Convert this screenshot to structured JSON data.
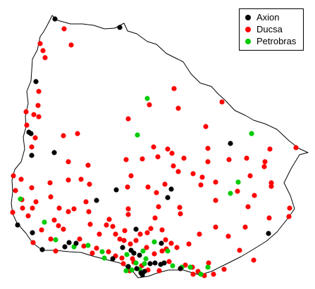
{
  "legend": {
    "items": [
      {
        "label": "Axion",
        "color": "#000000"
      },
      {
        "label": "Ducsa",
        "color": "#ff0000"
      },
      {
        "label": "Petrobras",
        "color": "#00cc00"
      }
    ]
  },
  "chart_data": {
    "type": "scatter",
    "title": "",
    "grid": false,
    "legend_position": "top-right",
    "outline_color": "#000000",
    "series": [
      {
        "name": "Axion",
        "color": "#000000",
        "points": [
          [
            78,
            27
          ],
          [
            170,
            39
          ],
          [
            51,
            116
          ],
          [
            41,
            188
          ],
          [
            44,
            190
          ],
          [
            77,
            217
          ],
          [
            45,
            221
          ],
          [
            327,
            204
          ],
          [
            243,
            269
          ],
          [
            165,
            270
          ],
          [
            137,
            285
          ],
          [
            25,
            320
          ],
          [
            46,
            331
          ],
          [
            92,
            351
          ],
          [
            98,
            345
          ],
          [
            108,
            346
          ],
          [
            60,
            355
          ],
          [
            174,
            352
          ],
          [
            186,
            356
          ],
          [
            190,
            360
          ],
          [
            160,
            368
          ],
          [
            198,
            363
          ],
          [
            182,
            379
          ],
          [
            194,
            382
          ],
          [
            200,
            388
          ],
          [
            205,
            386
          ],
          [
            213,
            375
          ],
          [
            220,
            374
          ],
          [
            228,
            376
          ],
          [
            233,
            374
          ],
          [
            229,
            346
          ],
          [
            256,
            382
          ],
          [
            202,
            391
          ],
          [
            381,
            332
          ],
          [
            193,
            326
          ],
          [
            238,
            281
          ]
        ]
      },
      {
        "name": "Ducsa",
        "color": "#ff0000",
        "points": [
          [
            91,
            41
          ],
          [
            101,
            64
          ],
          [
            64,
            82
          ],
          [
            61,
            72
          ],
          [
            57,
            62
          ],
          [
            55,
            130
          ],
          [
            54,
            150
          ],
          [
            48,
            163
          ],
          [
            37,
            159
          ],
          [
            55,
            166
          ],
          [
            38,
            178
          ],
          [
            50,
            196
          ],
          [
            45,
            209
          ],
          [
            90,
            193
          ],
          [
            110,
            190
          ],
          [
            97,
            230
          ],
          [
            125,
            235
          ],
          [
            97,
            256
          ],
          [
            115,
            255
          ],
          [
            127,
            262
          ],
          [
            71,
            260
          ],
          [
            45,
            267
          ],
          [
            30,
            255
          ],
          [
            19,
            250
          ],
          [
            22,
            271
          ],
          [
            31,
            284
          ],
          [
            51,
            287
          ],
          [
            32,
            296
          ],
          [
            18,
            302
          ],
          [
            40,
            307
          ],
          [
            46,
            296
          ],
          [
            72,
            280
          ],
          [
            84,
            296
          ],
          [
            97,
            301
          ],
          [
            105,
            297
          ],
          [
            77,
            313
          ],
          [
            90,
            326
          ],
          [
            83,
            321
          ],
          [
            47,
            345
          ],
          [
            59,
            327
          ],
          [
            72,
            340
          ],
          [
            122,
            287
          ],
          [
            126,
            301
          ],
          [
            128,
            319
          ],
          [
            141,
            333
          ],
          [
            151,
            320
          ],
          [
            155,
            312
          ],
          [
            160,
            322
          ],
          [
            182,
            297
          ],
          [
            182,
            305
          ],
          [
            164,
            333
          ],
          [
            170,
            340
          ],
          [
            176,
            342
          ],
          [
            177,
            328
          ],
          [
            199,
            333
          ],
          [
            209,
            331
          ],
          [
            214,
            325
          ],
          [
            230,
            327
          ],
          [
            220,
            310
          ],
          [
            235,
            341
          ],
          [
            236,
            354
          ],
          [
            243,
            346
          ],
          [
            251,
            352
          ],
          [
            230,
            357
          ],
          [
            208,
            352
          ],
          [
            185,
            347
          ],
          [
            137,
            353
          ],
          [
            131,
            360
          ],
          [
            154,
            358
          ],
          [
            164,
            364
          ],
          [
            173,
            367
          ],
          [
            188,
            368
          ],
          [
            175,
            375
          ],
          [
            184,
            385
          ],
          [
            190,
            373
          ],
          [
            210,
            384
          ],
          [
            226,
            385
          ],
          [
            240,
            372
          ],
          [
            263,
            377
          ],
          [
            273,
            380
          ],
          [
            274,
            390
          ],
          [
            281,
            386
          ],
          [
            290,
            392
          ],
          [
            303,
            390
          ],
          [
            318,
            383
          ],
          [
            296,
            374
          ],
          [
            268,
            347
          ],
          [
            283,
            333
          ],
          [
            306,
            323
          ],
          [
            324,
            336
          ],
          [
            348,
            323
          ],
          [
            340,
            356
          ],
          [
            360,
            370
          ],
          [
            382,
            310
          ],
          [
            411,
            296
          ],
          [
            410,
            308
          ],
          [
            385,
            260
          ],
          [
            385,
            265
          ],
          [
            375,
            237
          ],
          [
            376,
            230
          ],
          [
            383,
            212
          ],
          [
            355,
            250
          ],
          [
            350,
            225
          ],
          [
            337,
            272
          ],
          [
            306,
            259
          ],
          [
            287,
            252
          ],
          [
            285,
            263
          ],
          [
            274,
            247
          ],
          [
            253,
            244
          ],
          [
            246,
            236
          ],
          [
            261,
            225
          ],
          [
            238,
            212
          ],
          [
            224,
            223
          ],
          [
            244,
            218
          ],
          [
            218,
            209
          ],
          [
            202,
            226
          ],
          [
            179,
            227
          ],
          [
            181,
            266
          ],
          [
            210,
            266
          ],
          [
            234,
            262
          ],
          [
            295,
            211
          ],
          [
            295,
            230
          ],
          [
            325,
            227
          ],
          [
            212,
            149
          ],
          [
            253,
            154
          ],
          [
            315,
            145
          ],
          [
            292,
            180
          ],
          [
            247,
            126
          ],
          [
            182,
            169
          ],
          [
            186,
            250
          ],
          [
            222,
            274
          ],
          [
            225,
            294
          ],
          [
            255,
            295
          ],
          [
            256,
            304
          ],
          [
            306,
            285
          ],
          [
            352,
            294
          ],
          [
            361,
            278
          ],
          [
            420,
            210
          ],
          [
            193,
            342
          ],
          [
            113,
            340
          ],
          [
            119,
            350
          ],
          [
            79,
            357
          ],
          [
            201,
            378
          ],
          [
            219,
            361
          ]
        ]
      },
      {
        "name": "Petrobras",
        "color": "#00cc00",
        "points": [
          [
            209,
            140
          ],
          [
            195,
            192
          ],
          [
            357,
            190
          ],
          [
            338,
            259
          ],
          [
            327,
            275
          ],
          [
            29,
            283
          ],
          [
            63,
            316
          ],
          [
            79,
            341
          ],
          [
            125,
            349
          ],
          [
            145,
            358
          ],
          [
            148,
            367
          ],
          [
            180,
            362
          ],
          [
            203,
            357
          ],
          [
            219,
            344
          ],
          [
            238,
            357
          ],
          [
            193,
            374
          ],
          [
            198,
            383
          ],
          [
            205,
            375
          ],
          [
            179,
            385
          ],
          [
            245,
            378
          ],
          [
            258,
            380
          ],
          [
            270,
            380
          ],
          [
            285,
            390
          ],
          [
            295,
            380
          ],
          [
            105,
            351
          ],
          [
            207,
            368
          ],
          [
            187,
            384
          ]
        ]
      }
    ]
  }
}
